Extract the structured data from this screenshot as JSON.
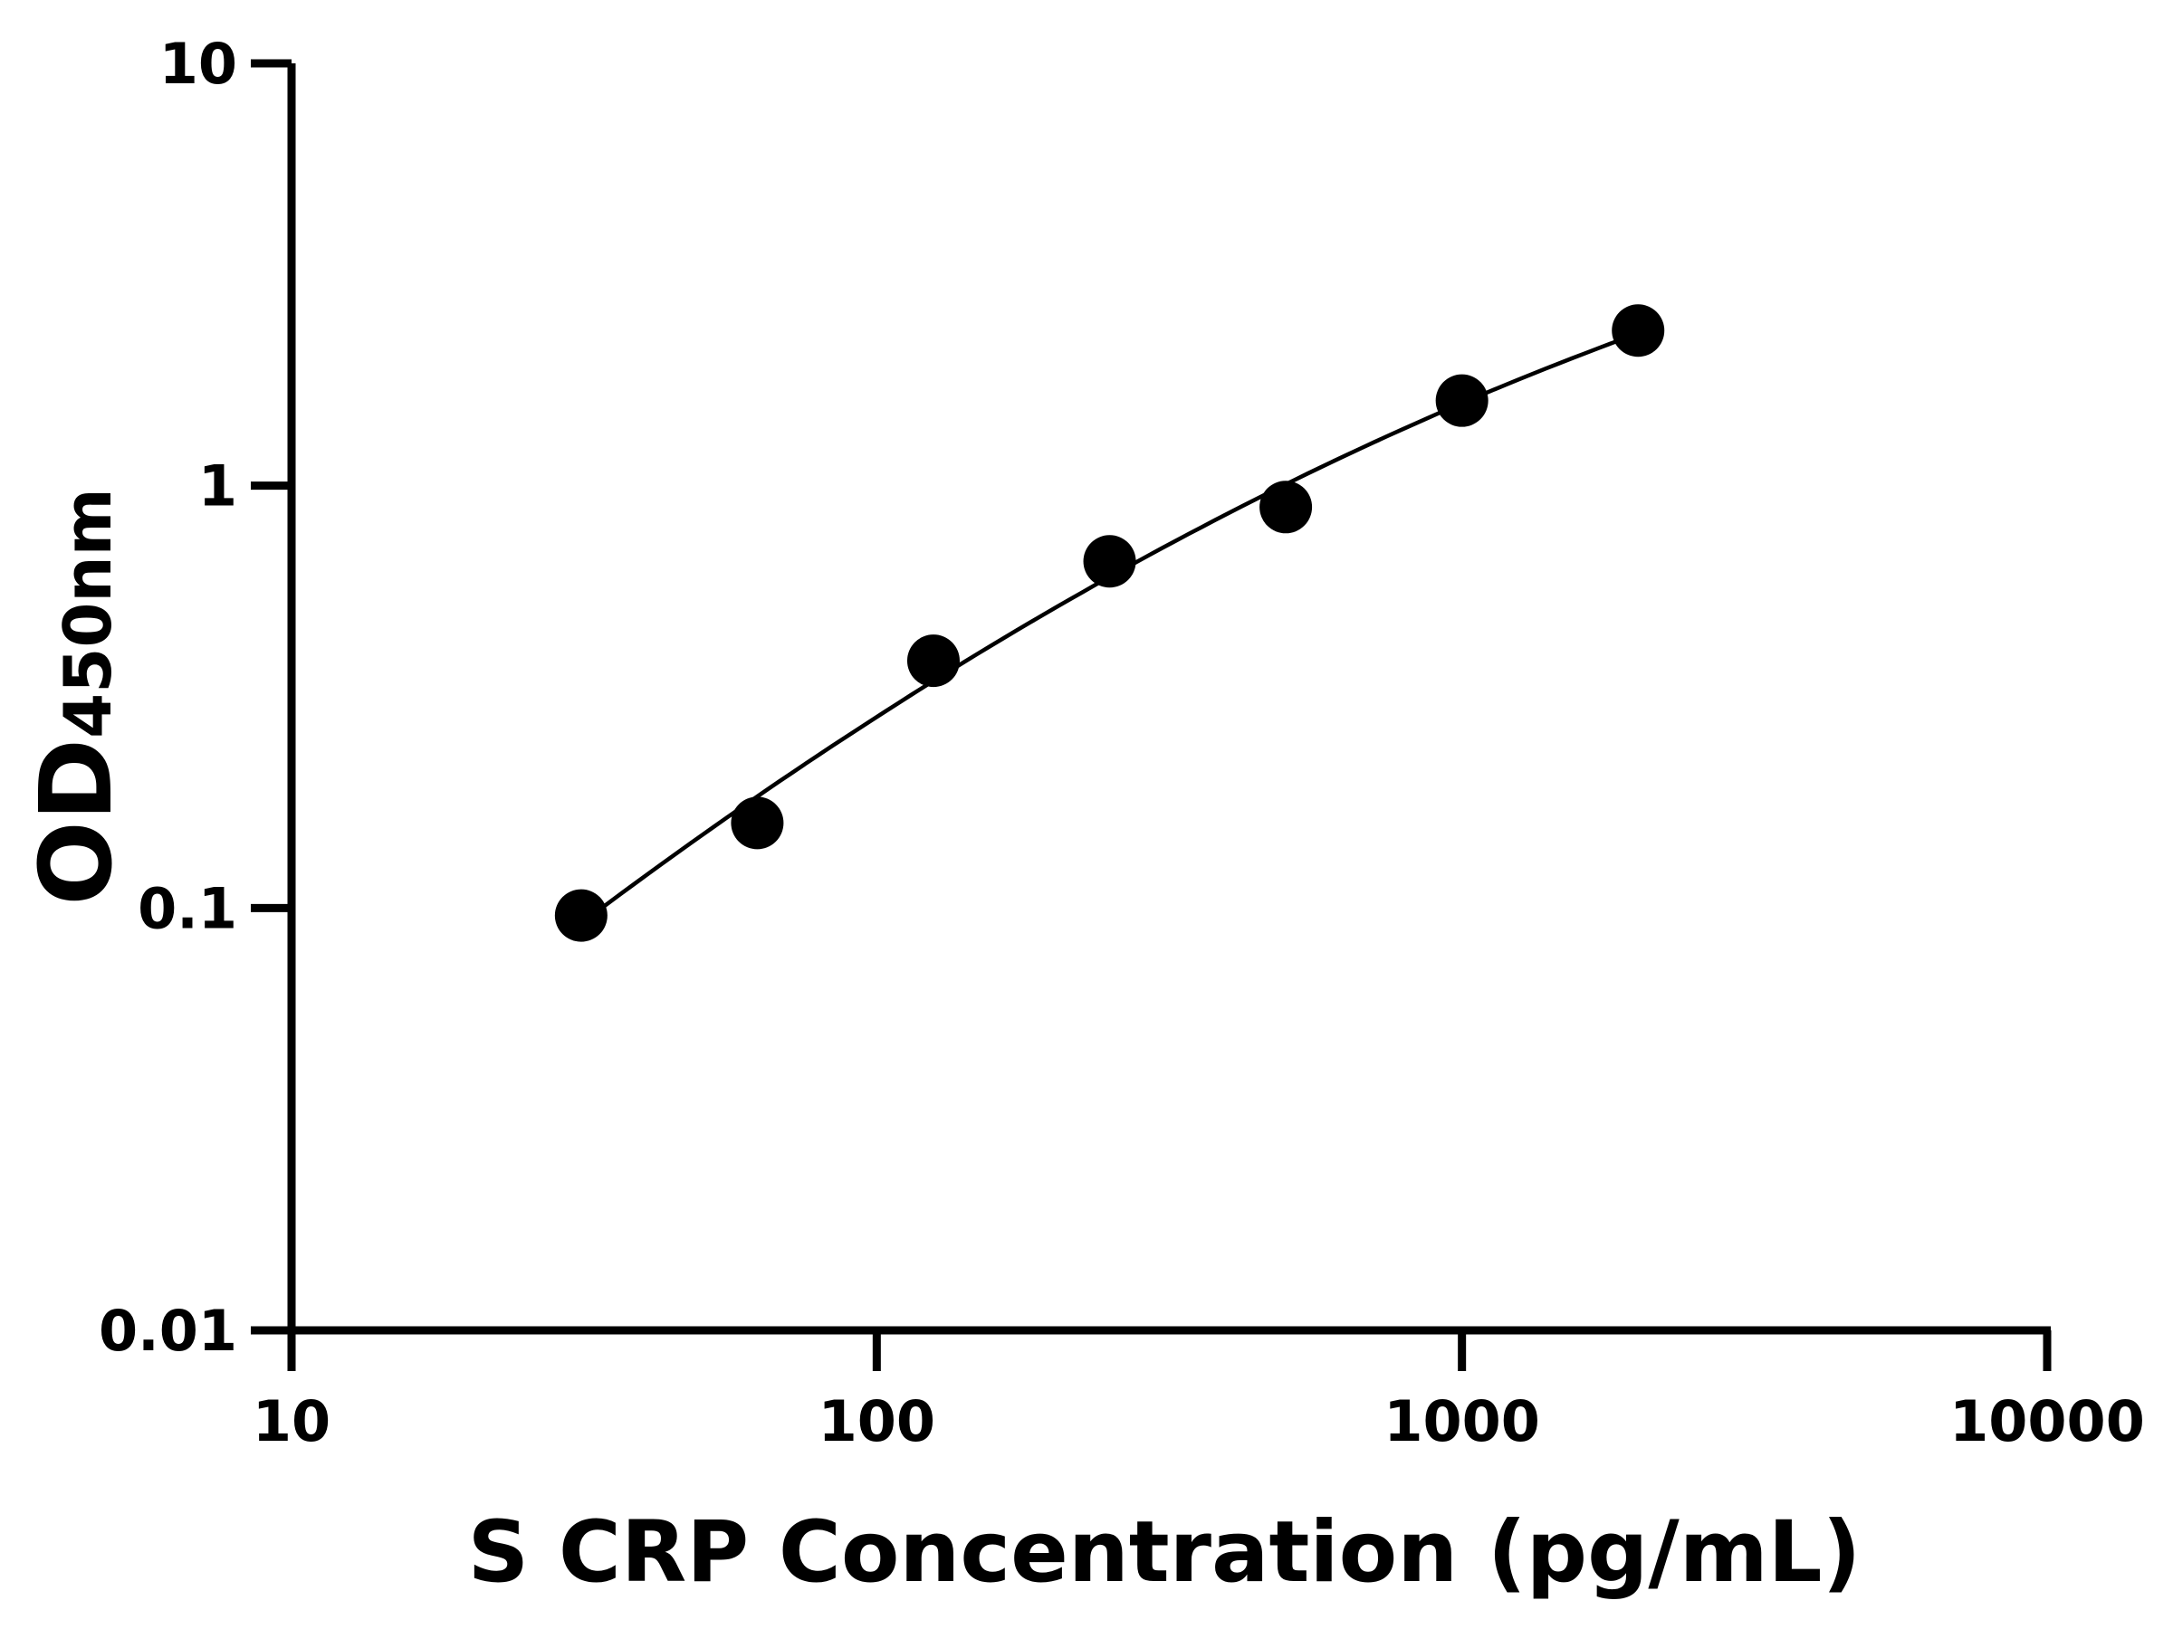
{
  "chart_data": {
    "type": "scatter",
    "xlabel": "S CRP Concentration (pg/mL)",
    "ylabel_main": "OD",
    "ylabel_sub": "450nm",
    "x_scale": "log",
    "y_scale": "log",
    "xlim": [
      10,
      10000
    ],
    "ylim": [
      0.01,
      10
    ],
    "x_ticks": [
      "10",
      "100",
      "1000",
      "10000"
    ],
    "y_ticks": [
      "0.01",
      "0.1",
      "1",
      "10"
    ],
    "grid": false,
    "fit_curve": true,
    "series": [
      {
        "x": [
          31.25,
          62.5,
          125,
          250,
          500,
          1000,
          2000
        ],
        "y": [
          0.096,
          0.159,
          0.385,
          0.662,
          0.89,
          1.59,
          2.33
        ]
      }
    ],
    "color": "#000000"
  }
}
